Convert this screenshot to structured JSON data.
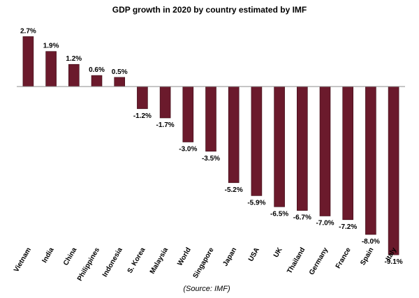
{
  "colors": {
    "bar_fill": "#6b1a2c",
    "bar_stroke": "#3a0a14",
    "axis": "#8c8c8c",
    "background": "#ffffff"
  },
  "chart_data": {
    "type": "bar",
    "title": "GDP growth in 2020 by country estimated by IMF",
    "xlabel": "",
    "ylabel": "",
    "ylim": [
      -10,
      3
    ],
    "grid": false,
    "legend": "none",
    "unit_suffix": "%",
    "categories": [
      "Vietnam",
      "India",
      "China",
      "Philippines",
      "Indonesia",
      "S. Korea",
      "Malaysia",
      "World",
      "Singapore",
      "Japan",
      "USA",
      "UK",
      "Thailand",
      "Germany",
      "France",
      "Spain",
      "Italy"
    ],
    "values": [
      2.7,
      1.9,
      1.2,
      0.6,
      0.5,
      -1.2,
      -1.7,
      -3.0,
      -3.5,
      -5.2,
      -5.9,
      -6.5,
      -6.7,
      -7.0,
      -7.2,
      -8.0,
      -9.1
    ],
    "value_labels": [
      "2.7%",
      "1.9%",
      "1.2%",
      "0.6%",
      "0.5%",
      "-1.2%",
      "-1.7%",
      "-3.0%",
      "-3.5%",
      "-5.2%",
      "-5.9%",
      "-6.5%",
      "-6.7%",
      "-7.0%",
      "-7.2%",
      "-8.0%",
      "-9.1%"
    ],
    "source_note": "(Source: IMF)"
  }
}
